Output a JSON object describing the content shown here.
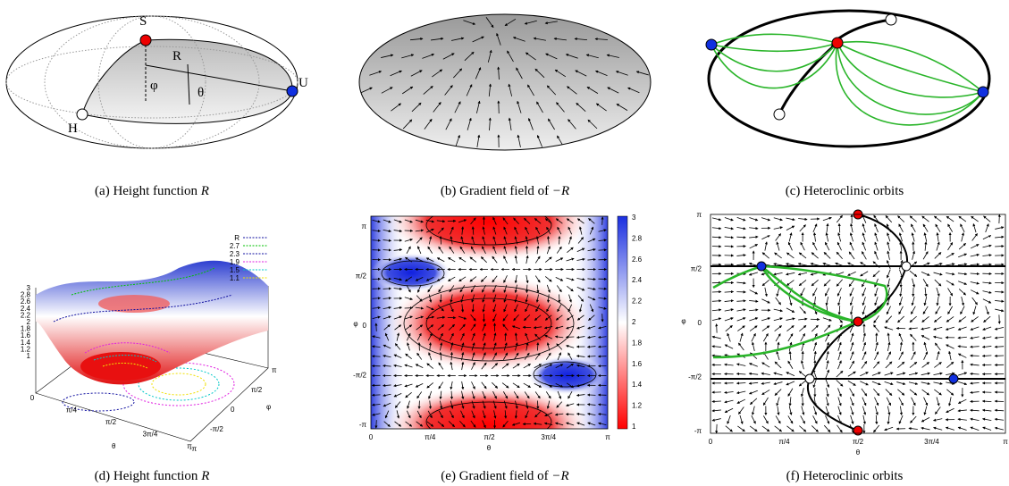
{
  "panels": {
    "a": {
      "caption_text": "(a) Height function",
      "caption_var": "R",
      "labels": {
        "S": "S",
        "R": "R",
        "phi": "φ",
        "theta": "θ",
        "U": "U",
        "H": "H"
      }
    },
    "b": {
      "caption_text": "(b) Gradient field of",
      "caption_var": "−R"
    },
    "c": {
      "caption_text": "(c) Heteroclinic orbits"
    },
    "d": {
      "caption_text": "(d) Height function",
      "caption_var": "R",
      "legend": [
        "R",
        "2.7",
        "2.3",
        "1.9",
        "1.5",
        "1.1"
      ],
      "zticks": [
        "3",
        "2.8",
        "2.6",
        "2.4",
        "2.2",
        "2",
        "1.8",
        "1.6",
        "1.4",
        "1.2",
        "1"
      ],
      "xticks": [
        "0",
        "π/4",
        "π/2",
        "3π/4",
        "π"
      ],
      "yticks": [
        "-π",
        "-π/2",
        "0",
        "π/2",
        "π"
      ],
      "xlabel": "θ",
      "ylabel": "φ"
    },
    "e": {
      "caption_text": "(e) Gradient field of",
      "caption_var": "−R",
      "colorbar_ticks": [
        "3",
        "2.8",
        "2.6",
        "2.4",
        "2.2",
        "2",
        "1.8",
        "1.6",
        "1.4",
        "1.2",
        "1"
      ],
      "xticks": [
        "0",
        "π/4",
        "π/2",
        "3π/4",
        "π"
      ],
      "yticks": [
        "π",
        "π/2",
        "0",
        "-π/2",
        "-π"
      ],
      "xlabel": "θ",
      "ylabel": "φ"
    },
    "f": {
      "caption_text": "(f) Heteroclinic orbits",
      "xticks": [
        "0",
        "π/4",
        "π/2",
        "3π/4",
        "π"
      ],
      "yticks": [
        "π",
        "π/2",
        "0",
        "-π/2",
        "-π"
      ],
      "xlabel": "θ",
      "ylabel": "φ"
    }
  }
}
